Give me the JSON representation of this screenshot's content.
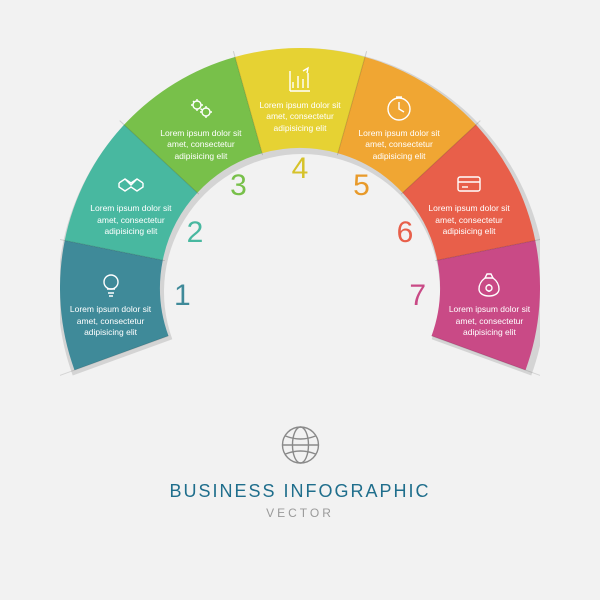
{
  "infographic": {
    "type": "radial-semicircle-infographic",
    "center_icon": "globe-icon",
    "title": "BUSINESS INFOGRAPHIC",
    "subtitle": "VECTOR",
    "title_color": "#1f6e8c",
    "subtitle_color": "#9a9a9a",
    "background_color": "#f2f2f2",
    "outer_radius": 240,
    "inner_radius": 140,
    "segment_count": 7,
    "start_angle": 200,
    "end_angle": -20,
    "placeholder_text": "Lorem ipsum dolor sit amet, consectetur adipisicing elit",
    "segments": [
      {
        "n": "1",
        "icon": "bulb-icon",
        "fill": "#3f8a99",
        "number_color": "#3f8a99"
      },
      {
        "n": "2",
        "icon": "handshake-icon",
        "fill": "#48b8a0",
        "number_color": "#48b8a0"
      },
      {
        "n": "3",
        "icon": "gears-icon",
        "fill": "#78c04a",
        "number_color": "#78c04a"
      },
      {
        "n": "4",
        "icon": "graph-icon",
        "fill": "#e6d233",
        "number_color": "#d6c22a"
      },
      {
        "n": "5",
        "icon": "clock-icon",
        "fill": "#f0a633",
        "number_color": "#e89a2a"
      },
      {
        "n": "6",
        "icon": "card-icon",
        "fill": "#e85f4a",
        "number_color": "#e85f4a"
      },
      {
        "n": "7",
        "icon": "moneybag-icon",
        "fill": "#c94a86",
        "number_color": "#c94a86"
      }
    ],
    "text_color": "#ffffff",
    "label_fontsize": 8.5,
    "number_fontsize": 30
  }
}
